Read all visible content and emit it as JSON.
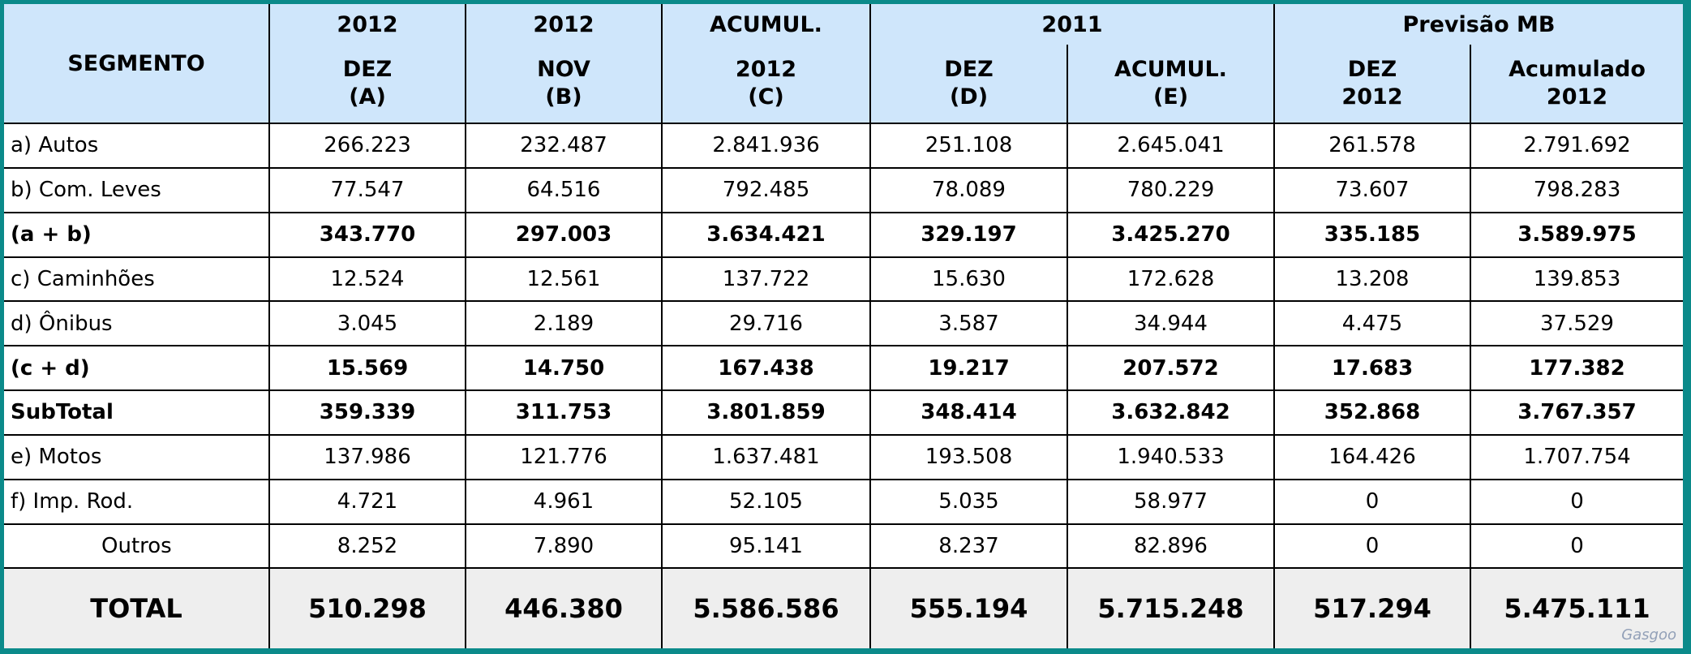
{
  "header": {
    "segment": "SEGMENTO",
    "top": [
      "2012",
      "2012",
      "ACUMUL.",
      "2011",
      "Previsão MB"
    ],
    "columns": [
      [
        "DEZ",
        "(A)"
      ],
      [
        "NOV",
        "(B)"
      ],
      [
        "2012",
        "(C)"
      ],
      [
        "DEZ",
        "(D)"
      ],
      [
        "ACUMUL.",
        "(E)"
      ],
      [
        "DEZ",
        "2012"
      ],
      [
        "Acumulado",
        "2012"
      ]
    ]
  },
  "rows": [
    {
      "label": "a) Autos",
      "values": [
        "266.223",
        "232.487",
        "2.841.936",
        "251.108",
        "2.645.041",
        "261.578",
        "2.791.692"
      ]
    },
    {
      "label": "b) Com. Leves",
      "values": [
        "77.547",
        "64.516",
        "792.485",
        "78.089",
        "780.229",
        "73.607",
        "798.283"
      ]
    },
    {
      "label": "(a + b)",
      "values": [
        "343.770",
        "297.003",
        "3.634.421",
        "329.197",
        "3.425.270",
        "335.185",
        "3.589.975"
      ]
    },
    {
      "label": "c) Caminhões",
      "values": [
        "12.524",
        "12.561",
        "137.722",
        "15.630",
        "172.628",
        "13.208",
        "139.853"
      ]
    },
    {
      "label": "d) Ônibus",
      "values": [
        "3.045",
        "2.189",
        "29.716",
        "3.587",
        "34.944",
        "4.475",
        "37.529"
      ]
    },
    {
      "label": "(c + d)",
      "values": [
        "15.569",
        "14.750",
        "167.438",
        "19.217",
        "207.572",
        "17.683",
        "177.382"
      ]
    },
    {
      "label": "SubTotal",
      "values": [
        "359.339",
        "311.753",
        "3.801.859",
        "348.414",
        "3.632.842",
        "352.868",
        "3.767.357"
      ]
    },
    {
      "label": "e) Motos",
      "values": [
        "137.986",
        "121.776",
        "1.637.481",
        "193.508",
        "1.940.533",
        "164.426",
        "1.707.754"
      ]
    },
    {
      "label": "f) Imp. Rod.",
      "values": [
        "4.721",
        "4.961",
        "52.105",
        "5.035",
        "58.977",
        "0",
        "0"
      ]
    },
    {
      "label": "Outros",
      "values": [
        "8.252",
        "7.890",
        "95.141",
        "8.237",
        "82.896",
        "0",
        "0"
      ]
    }
  ],
  "total": {
    "label": "TOTAL",
    "values": [
      "510.298",
      "446.380",
      "5.586.586",
      "555.194",
      "5.715.248",
      "517.294",
      "5.475.111"
    ]
  },
  "watermark": "Gasgoo",
  "colors": {
    "frame": "#0b8a8a",
    "header_bg": "#cfe6fb",
    "total_bg": "#eeeeee"
  }
}
